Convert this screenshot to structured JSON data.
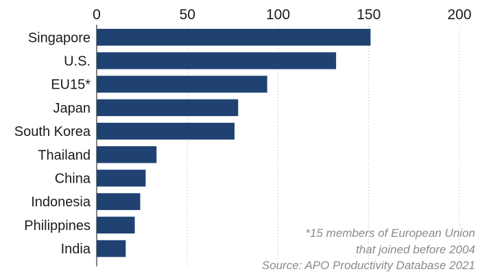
{
  "chart_data": {
    "type": "bar",
    "orientation": "horizontal",
    "categories": [
      "Singapore",
      "U.S.",
      "EU15*",
      "Japan",
      "South Korea",
      "Thailand",
      "China",
      "Indonesia",
      "Philippines",
      "India"
    ],
    "values": [
      151,
      132,
      94,
      78,
      76,
      33,
      27,
      24,
      21,
      16
    ],
    "xlim": [
      0,
      200
    ],
    "x_ticks": [
      0,
      50,
      100,
      150,
      200
    ],
    "x_axis_position": "top",
    "grid": "vertical dotted",
    "bar_color": "#1f4272",
    "notes": [
      "*15 members of European Union",
      "that joined before 2004",
      "Source: APO Productivity Database 2021"
    ]
  }
}
